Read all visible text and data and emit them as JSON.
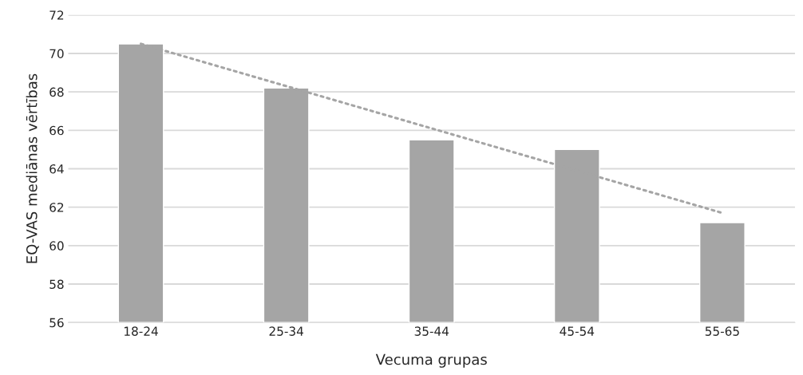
{
  "chart_data": {
    "type": "bar",
    "xlabel": "Vecuma grupas",
    "ylabel": "EQ-VAS mediānas vērtības",
    "categories": [
      "18-24",
      "25-34",
      "35-44",
      "45-54",
      "55-65"
    ],
    "series": [
      {
        "color": "#a5a5a5",
        "values": [
          70.5,
          68.2,
          65.5,
          65.0,
          61.2
        ]
      },
      {
        "type": "line",
        "color": "#a5a5a5",
        "line_style": "dotted",
        "x": [
          "18-24",
          "55-65"
        ],
        "values": [
          70.5,
          61.7
        ]
      }
    ],
    "ylim": [
      56,
      72
    ],
    "yticks": [
      56,
      58,
      60,
      62,
      64,
      66,
      68,
      70,
      72
    ],
    "grid": "y",
    "legend": false
  }
}
